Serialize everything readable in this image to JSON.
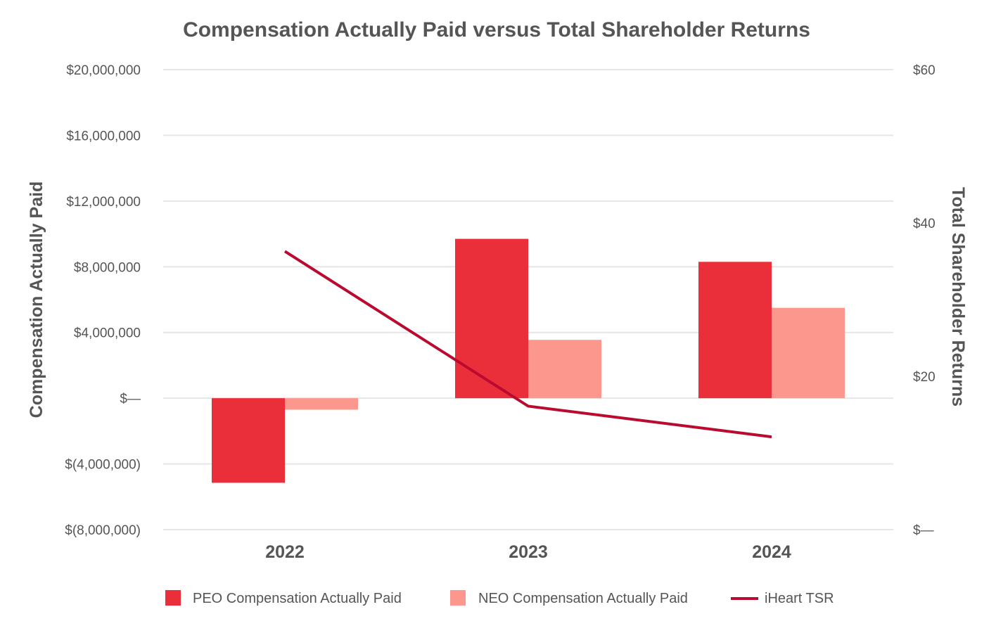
{
  "chart_data": {
    "type": "bar",
    "title": "Compensation Actually Paid versus Total Shareholder Returns",
    "categories": [
      "2022",
      "2023",
      "2024"
    ],
    "ylabel": "Compensation Actually Paid",
    "y2label": "Total Shareholder Returns",
    "ylim": [
      -8000000,
      20000000
    ],
    "y2lim": [
      0,
      60
    ],
    "yticks": [
      -8000000,
      -4000000,
      0,
      4000000,
      8000000,
      12000000,
      16000000,
      20000000
    ],
    "ytick_labels": [
      "$(8,000,000)",
      "$(4,000,000)",
      "$—",
      "$4,000,000",
      "$8,000,000",
      "$12,000,000",
      "$16,000,000",
      "$20,000,000"
    ],
    "y2ticks": [
      0,
      20,
      40,
      60
    ],
    "y2tick_labels": [
      "$—",
      "$20",
      "$40",
      "$60"
    ],
    "grid": true,
    "legend_position": "bottom",
    "series": [
      {
        "name": "PEO Compensation Actually Paid",
        "type": "bar",
        "axis": "left",
        "color": "#ea2e3a",
        "values": [
          -5150000,
          9700000,
          8300000
        ]
      },
      {
        "name": "NEO Compensation Actually Paid",
        "type": "bar",
        "axis": "left",
        "color": "#fb978c",
        "values": [
          -700000,
          3550000,
          5500000
        ]
      },
      {
        "name": "iHeart TSR",
        "type": "line",
        "axis": "right",
        "color": "#bb0a30",
        "values": [
          36.3,
          16.1,
          12.1
        ]
      }
    ]
  }
}
